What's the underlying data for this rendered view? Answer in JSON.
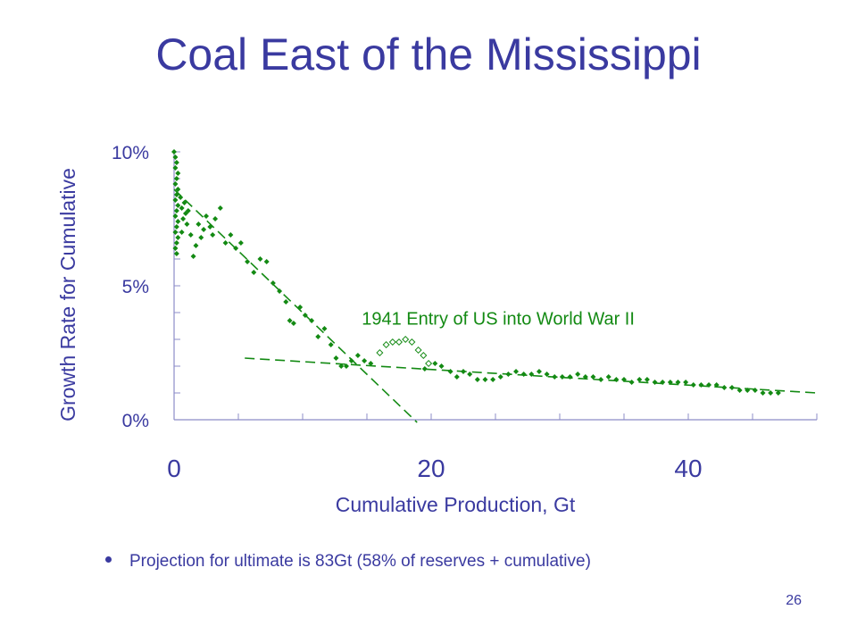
{
  "slide": {
    "title": "Coal East of the Mississippi",
    "bullet": "Projection for ultimate is 83Gt (58% of reserves + cumulative)",
    "page_number": "26"
  },
  "colors": {
    "text": "#3a3aa0",
    "points": "#138a13",
    "axis": "#8c8cc8"
  },
  "chart_data": {
    "type": "scatter",
    "xlabel": "Cumulative Production, Gt",
    "ylabel": "Growth Rate for Cumulative",
    "xlim": [
      0,
      50
    ],
    "ylim": [
      0,
      10
    ],
    "x_ticks": [
      0,
      20,
      40
    ],
    "y_ticks": [
      {
        "value": 0,
        "label": "0%"
      },
      {
        "value": 5,
        "label": "5%"
      },
      {
        "value": 10,
        "label": "10%"
      }
    ],
    "annotation": "1941 Entry of US into World War II",
    "series": [
      {
        "marker": "filled-diamond",
        "points": [
          [
            0.0,
            10.0
          ],
          [
            0.1,
            9.8
          ],
          [
            0.2,
            9.6
          ],
          [
            0.1,
            9.4
          ],
          [
            0.3,
            9.2
          ],
          [
            0.2,
            9.0
          ],
          [
            0.1,
            8.8
          ],
          [
            0.3,
            8.6
          ],
          [
            0.2,
            8.4
          ],
          [
            0.1,
            8.2
          ],
          [
            0.3,
            8.0
          ],
          [
            0.2,
            7.8
          ],
          [
            0.1,
            7.6
          ],
          [
            0.3,
            7.4
          ],
          [
            0.2,
            7.2
          ],
          [
            0.1,
            7.0
          ],
          [
            0.3,
            6.8
          ],
          [
            0.2,
            6.6
          ],
          [
            0.1,
            6.4
          ],
          [
            0.2,
            6.2
          ],
          [
            0.5,
            8.3
          ],
          [
            0.6,
            7.9
          ],
          [
            0.7,
            7.5
          ],
          [
            0.6,
            7.0
          ],
          [
            0.8,
            8.1
          ],
          [
            0.9,
            7.7
          ],
          [
            1.0,
            7.3
          ],
          [
            1.1,
            7.8
          ],
          [
            1.3,
            6.9
          ],
          [
            1.5,
            6.1
          ],
          [
            1.7,
            6.5
          ],
          [
            1.9,
            7.3
          ],
          [
            2.1,
            6.8
          ],
          [
            2.3,
            7.1
          ],
          [
            2.5,
            7.6
          ],
          [
            2.8,
            7.2
          ],
          [
            3.0,
            6.9
          ],
          [
            3.2,
            7.5
          ],
          [
            3.6,
            7.9
          ],
          [
            4.0,
            6.6
          ],
          [
            4.4,
            6.9
          ],
          [
            4.8,
            6.4
          ],
          [
            5.2,
            6.6
          ],
          [
            5.7,
            5.9
          ],
          [
            6.2,
            5.5
          ],
          [
            6.7,
            6.0
          ],
          [
            7.2,
            5.9
          ],
          [
            7.7,
            5.1
          ],
          [
            8.2,
            4.8
          ],
          [
            8.7,
            4.4
          ],
          [
            9.0,
            3.7
          ],
          [
            9.3,
            3.6
          ],
          [
            9.8,
            4.2
          ],
          [
            10.2,
            3.9
          ],
          [
            10.7,
            3.7
          ],
          [
            11.2,
            3.1
          ],
          [
            11.7,
            3.4
          ],
          [
            12.2,
            2.8
          ],
          [
            12.6,
            2.3
          ],
          [
            13.0,
            2.0
          ],
          [
            13.4,
            2.0
          ],
          [
            13.8,
            2.2
          ],
          [
            14.3,
            2.4
          ],
          [
            14.8,
            2.2
          ],
          [
            15.3,
            2.1
          ],
          [
            19.5,
            1.9
          ],
          [
            20.3,
            2.1
          ],
          [
            20.8,
            2.0
          ],
          [
            21.5,
            1.8
          ],
          [
            22.0,
            1.6
          ],
          [
            22.5,
            1.8
          ],
          [
            23.0,
            1.7
          ],
          [
            23.6,
            1.5
          ],
          [
            24.2,
            1.5
          ],
          [
            24.8,
            1.5
          ],
          [
            25.4,
            1.6
          ],
          [
            26.0,
            1.7
          ],
          [
            26.6,
            1.8
          ],
          [
            27.2,
            1.7
          ],
          [
            27.8,
            1.7
          ],
          [
            28.4,
            1.8
          ],
          [
            29.0,
            1.7
          ],
          [
            29.6,
            1.6
          ],
          [
            30.2,
            1.6
          ],
          [
            30.8,
            1.6
          ],
          [
            31.4,
            1.7
          ],
          [
            32.0,
            1.6
          ],
          [
            32.6,
            1.6
          ],
          [
            33.2,
            1.5
          ],
          [
            33.8,
            1.6
          ],
          [
            34.4,
            1.5
          ],
          [
            35.0,
            1.5
          ],
          [
            35.6,
            1.4
          ],
          [
            36.2,
            1.5
          ],
          [
            36.8,
            1.5
          ],
          [
            37.4,
            1.4
          ],
          [
            38.0,
            1.4
          ],
          [
            38.6,
            1.4
          ],
          [
            39.2,
            1.4
          ],
          [
            39.8,
            1.4
          ],
          [
            40.4,
            1.3
          ],
          [
            41.0,
            1.3
          ],
          [
            41.6,
            1.3
          ],
          [
            42.2,
            1.3
          ],
          [
            42.8,
            1.2
          ],
          [
            43.4,
            1.2
          ],
          [
            44.0,
            1.1
          ],
          [
            44.6,
            1.1
          ],
          [
            45.2,
            1.1
          ],
          [
            45.8,
            1.0
          ],
          [
            46.4,
            1.0
          ],
          [
            47.0,
            1.0
          ]
        ]
      },
      {
        "marker": "open-diamond",
        "points": [
          [
            16.0,
            2.5
          ],
          [
            16.5,
            2.8
          ],
          [
            17.0,
            2.9
          ],
          [
            17.5,
            2.9
          ],
          [
            18.0,
            3.0
          ],
          [
            18.5,
            2.9
          ],
          [
            19.0,
            2.6
          ],
          [
            19.4,
            2.4
          ],
          [
            19.8,
            2.1
          ]
        ]
      }
    ],
    "trend_lines": [
      {
        "style": "dashed",
        "points": [
          [
            0,
            8.6
          ],
          [
            18.9,
            -0.1
          ]
        ]
      },
      {
        "style": "dashed",
        "points": [
          [
            5.5,
            2.3
          ],
          [
            50,
            1.0
          ]
        ]
      }
    ]
  }
}
